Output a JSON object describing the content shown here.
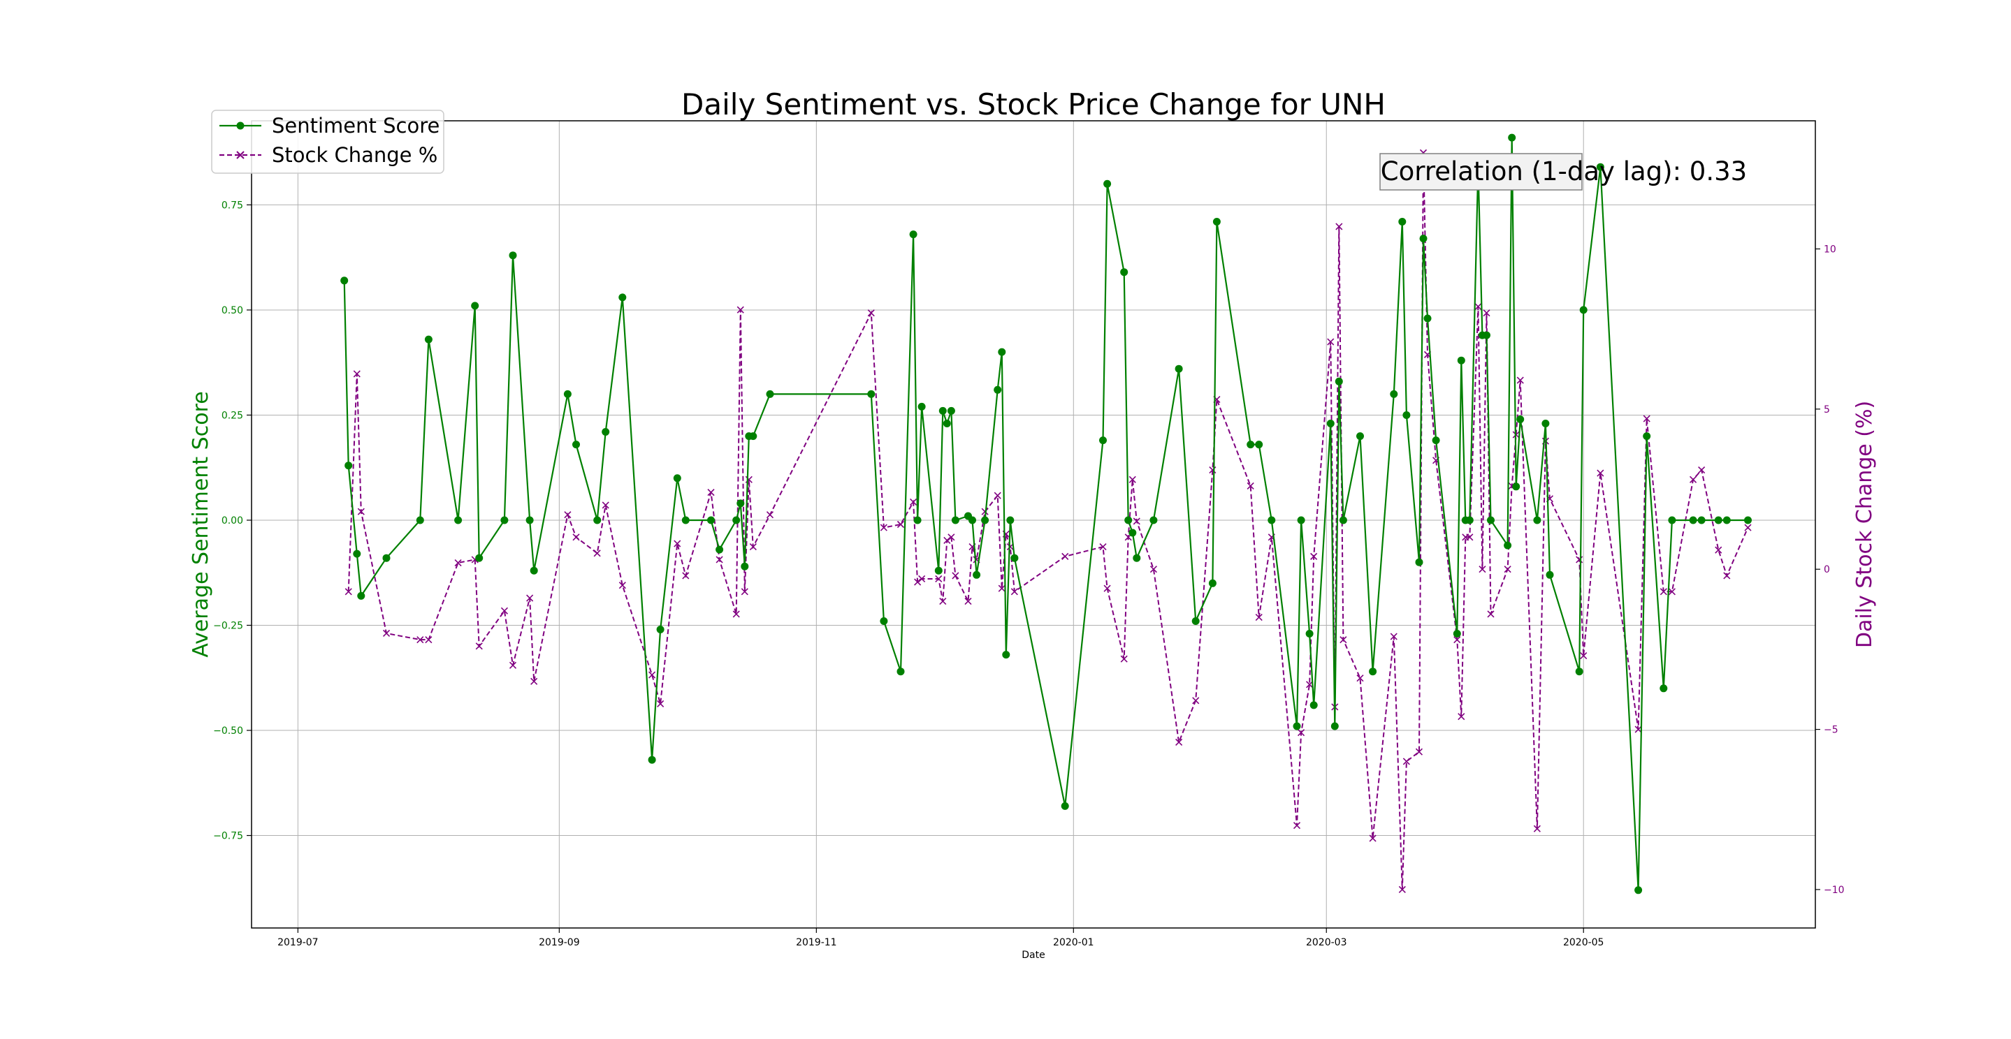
{
  "chart_data": {
    "type": "line",
    "title": "Daily Sentiment vs. Stock Price Change for UNH",
    "xlabel": "Date",
    "ylabel_left": "Average Sentiment Score",
    "ylabel_right": "Daily Stock Change (%)",
    "annotation": "Correlation (1-day lag): 0.33",
    "grid": true,
    "legend_position": "top-left",
    "x_ticks": [
      "2019-07",
      "2019-09",
      "2019-11",
      "2020-01",
      "2020-03",
      "2020-05"
    ],
    "x_range": [
      "2019-06-20",
      "2020-06-25"
    ],
    "y_left_range": [
      -0.97,
      0.95
    ],
    "y_left_ticks": [
      -0.75,
      -0.5,
      -0.25,
      0.0,
      0.25,
      0.5,
      0.75
    ],
    "y_left_tick_labels": [
      "−0.75",
      "−0.50",
      "−0.25",
      "0.00",
      "0.25",
      "0.50",
      "0.75"
    ],
    "y_right_range": [
      -11.2,
      14.0
    ],
    "y_right_ticks": [
      -10,
      -5,
      0,
      5,
      10
    ],
    "y_right_tick_labels": [
      "−10",
      "−5",
      "0",
      "5",
      "10"
    ],
    "colors": {
      "sentiment": "#008000",
      "stock": "#800080",
      "grid": "#b0b0b0"
    },
    "series": [
      {
        "name": "Sentiment Score",
        "axis": "left",
        "marker": "circle",
        "line_style": "solid",
        "points": [
          [
            "2019-07-12",
            0.57
          ],
          [
            "2019-07-13",
            0.13
          ],
          [
            "2019-07-15",
            -0.08
          ],
          [
            "2019-07-16",
            -0.18
          ],
          [
            "2019-07-22",
            -0.09
          ],
          [
            "2019-07-30",
            0.0
          ],
          [
            "2019-08-01",
            0.43
          ],
          [
            "2019-08-08",
            0.0
          ],
          [
            "2019-08-12",
            0.51
          ],
          [
            "2019-08-13",
            -0.09
          ],
          [
            "2019-08-19",
            0.0
          ],
          [
            "2019-08-21",
            0.63
          ],
          [
            "2019-08-25",
            0.0
          ],
          [
            "2019-08-26",
            -0.12
          ],
          [
            "2019-09-03",
            0.3
          ],
          [
            "2019-09-05",
            0.18
          ],
          [
            "2019-09-10",
            0.0
          ],
          [
            "2019-09-12",
            0.21
          ],
          [
            "2019-09-16",
            0.53
          ],
          [
            "2019-09-23",
            -0.57
          ],
          [
            "2019-09-25",
            -0.26
          ],
          [
            "2019-09-29",
            0.1
          ],
          [
            "2019-10-01",
            0.0
          ],
          [
            "2019-10-07",
            0.0
          ],
          [
            "2019-10-09",
            -0.07
          ],
          [
            "2019-10-13",
            0.0
          ],
          [
            "2019-10-14",
            0.04
          ],
          [
            "2019-10-15",
            -0.11
          ],
          [
            "2019-10-16",
            0.2
          ],
          [
            "2019-10-17",
            0.2
          ],
          [
            "2019-10-21",
            0.3
          ],
          [
            "2019-11-14",
            0.3
          ],
          [
            "2019-11-17",
            -0.24
          ],
          [
            "2019-11-21",
            -0.36
          ],
          [
            "2019-11-24",
            0.68
          ],
          [
            "2019-11-25",
            0.0
          ],
          [
            "2019-11-26",
            0.27
          ],
          [
            "2019-11-30",
            -0.12
          ],
          [
            "2019-12-01",
            0.26
          ],
          [
            "2019-12-02",
            0.23
          ],
          [
            "2019-12-03",
            0.26
          ],
          [
            "2019-12-04",
            0.0
          ],
          [
            "2019-12-07",
            0.01
          ],
          [
            "2019-12-08",
            0.0
          ],
          [
            "2019-12-09",
            -0.13
          ],
          [
            "2019-12-11",
            0.0
          ],
          [
            "2019-12-14",
            0.31
          ],
          [
            "2019-12-15",
            0.4
          ],
          [
            "2019-12-16",
            -0.32
          ],
          [
            "2019-12-17",
            0.0
          ],
          [
            "2019-12-18",
            -0.09
          ],
          [
            "2019-12-30",
            -0.68
          ],
          [
            "2020-01-08",
            0.19
          ],
          [
            "2020-01-09",
            0.8
          ],
          [
            "2020-01-13",
            0.59
          ],
          [
            "2020-01-14",
            0.0
          ],
          [
            "2020-01-15",
            -0.03
          ],
          [
            "2020-01-16",
            -0.09
          ],
          [
            "2020-01-20",
            0.0
          ],
          [
            "2020-01-26",
            0.36
          ],
          [
            "2020-01-30",
            -0.24
          ],
          [
            "2020-02-03",
            -0.15
          ],
          [
            "2020-02-04",
            0.71
          ],
          [
            "2020-02-12",
            0.18
          ],
          [
            "2020-02-14",
            0.18
          ],
          [
            "2020-02-17",
            0.0
          ],
          [
            "2020-02-23",
            -0.49
          ],
          [
            "2020-02-24",
            0.0
          ],
          [
            "2020-02-26",
            -0.27
          ],
          [
            "2020-02-27",
            -0.44
          ],
          [
            "2020-03-02",
            0.23
          ],
          [
            "2020-03-03",
            -0.49
          ],
          [
            "2020-03-04",
            0.33
          ],
          [
            "2020-03-05",
            0.0
          ],
          [
            "2020-03-09",
            0.2
          ],
          [
            "2020-03-12",
            -0.36
          ],
          [
            "2020-03-17",
            0.3
          ],
          [
            "2020-03-19",
            0.71
          ],
          [
            "2020-03-20",
            0.25
          ],
          [
            "2020-03-23",
            -0.1
          ],
          [
            "2020-03-24",
            0.67
          ],
          [
            "2020-03-25",
            0.48
          ],
          [
            "2020-03-27",
            0.19
          ],
          [
            "2020-04-01",
            -0.27
          ],
          [
            "2020-04-02",
            0.38
          ],
          [
            "2020-04-03",
            0.0
          ],
          [
            "2020-04-04",
            0.0
          ],
          [
            "2020-04-06",
            0.84
          ],
          [
            "2020-04-07",
            0.44
          ],
          [
            "2020-04-08",
            0.44
          ],
          [
            "2020-04-09",
            0.0
          ],
          [
            "2020-04-13",
            -0.06
          ],
          [
            "2020-04-14",
            0.91
          ],
          [
            "2020-04-15",
            0.08
          ],
          [
            "2020-04-16",
            0.24
          ],
          [
            "2020-04-20",
            0.0
          ],
          [
            "2020-04-22",
            0.23
          ],
          [
            "2020-04-23",
            -0.13
          ],
          [
            "2020-04-30",
            -0.36
          ],
          [
            "2020-05-01",
            0.5
          ],
          [
            "2020-05-05",
            0.84
          ],
          [
            "2020-05-14",
            -0.88
          ],
          [
            "2020-05-16",
            0.2
          ],
          [
            "2020-05-20",
            -0.4
          ],
          [
            "2020-05-22",
            0.0
          ],
          [
            "2020-05-27",
            0.0
          ],
          [
            "2020-05-29",
            0.0
          ],
          [
            "2020-06-02",
            0.0
          ],
          [
            "2020-06-04",
            0.0
          ],
          [
            "2020-06-09",
            0.0
          ]
        ]
      },
      {
        "name": "Stock Change %",
        "axis": "right",
        "marker": "x",
        "line_style": "dashed",
        "points": [
          [
            "2019-07-13",
            -0.7
          ],
          [
            "2019-07-15",
            6.1
          ],
          [
            "2019-07-16",
            1.8
          ],
          [
            "2019-07-22",
            -2.0
          ],
          [
            "2019-07-30",
            -2.2
          ],
          [
            "2019-08-01",
            -2.2
          ],
          [
            "2019-08-08",
            0.2
          ],
          [
            "2019-08-12",
            0.3
          ],
          [
            "2019-08-13",
            -2.4
          ],
          [
            "2019-08-19",
            -1.3
          ],
          [
            "2019-08-21",
            -3.0
          ],
          [
            "2019-08-25",
            -0.9
          ],
          [
            "2019-08-26",
            -3.5
          ],
          [
            "2019-09-03",
            1.7
          ],
          [
            "2019-09-05",
            1.0
          ],
          [
            "2019-09-10",
            0.5
          ],
          [
            "2019-09-12",
            2.0
          ],
          [
            "2019-09-16",
            -0.5
          ],
          [
            "2019-09-23",
            -3.3
          ],
          [
            "2019-09-25",
            -4.2
          ],
          [
            "2019-09-29",
            0.8
          ],
          [
            "2019-10-01",
            -0.2
          ],
          [
            "2019-10-07",
            2.4
          ],
          [
            "2019-10-09",
            0.3
          ],
          [
            "2019-10-13",
            -1.4
          ],
          [
            "2019-10-14",
            8.1
          ],
          [
            "2019-10-15",
            -0.7
          ],
          [
            "2019-10-16",
            2.8
          ],
          [
            "2019-10-17",
            0.7
          ],
          [
            "2019-10-21",
            1.7
          ],
          [
            "2019-11-14",
            8.0
          ],
          [
            "2019-11-17",
            1.3
          ],
          [
            "2019-11-21",
            1.4
          ],
          [
            "2019-11-24",
            2.1
          ],
          [
            "2019-11-25",
            -0.4
          ],
          [
            "2019-11-26",
            -0.3
          ],
          [
            "2019-11-30",
            -0.3
          ],
          [
            "2019-12-01",
            -1.0
          ],
          [
            "2019-12-02",
            0.9
          ],
          [
            "2019-12-03",
            1.0
          ],
          [
            "2019-12-04",
            -0.2
          ],
          [
            "2019-12-07",
            -1.0
          ],
          [
            "2019-12-08",
            0.7
          ],
          [
            "2019-12-09",
            0.3
          ],
          [
            "2019-12-11",
            1.8
          ],
          [
            "2019-12-14",
            2.3
          ],
          [
            "2019-12-15",
            -0.6
          ],
          [
            "2019-12-16",
            1.1
          ],
          [
            "2019-12-17",
            0.7
          ],
          [
            "2019-12-18",
            -0.7
          ],
          [
            "2019-12-30",
            0.4
          ],
          [
            "2020-01-08",
            0.7
          ],
          [
            "2020-01-09",
            -0.6
          ],
          [
            "2020-01-13",
            -2.8
          ],
          [
            "2020-01-14",
            1.0
          ],
          [
            "2020-01-15",
            2.8
          ],
          [
            "2020-01-16",
            1.5
          ],
          [
            "2020-01-20",
            0.0
          ],
          [
            "2020-01-26",
            -5.4
          ],
          [
            "2020-01-30",
            -4.1
          ],
          [
            "2020-02-03",
            3.1
          ],
          [
            "2020-02-04",
            5.3
          ],
          [
            "2020-02-12",
            2.6
          ],
          [
            "2020-02-14",
            -1.5
          ],
          [
            "2020-02-17",
            1.0
          ],
          [
            "2020-02-23",
            -8.0
          ],
          [
            "2020-02-24",
            -5.1
          ],
          [
            "2020-02-26",
            -3.6
          ],
          [
            "2020-02-27",
            0.4
          ],
          [
            "2020-03-02",
            7.1
          ],
          [
            "2020-03-03",
            -4.3
          ],
          [
            "2020-03-04",
            10.7
          ],
          [
            "2020-03-05",
            -2.2
          ],
          [
            "2020-03-09",
            -3.4
          ],
          [
            "2020-03-12",
            -8.4
          ],
          [
            "2020-03-17",
            -2.1
          ],
          [
            "2020-03-19",
            -10.0
          ],
          [
            "2020-03-20",
            -6.0
          ],
          [
            "2020-03-23",
            -5.7
          ],
          [
            "2020-03-24",
            13.0
          ],
          [
            "2020-03-25",
            6.7
          ],
          [
            "2020-03-27",
            3.4
          ],
          [
            "2020-04-01",
            -2.2
          ],
          [
            "2020-04-02",
            -4.6
          ],
          [
            "2020-04-03",
            1.0
          ],
          [
            "2020-04-04",
            1.0
          ],
          [
            "2020-04-06",
            8.2
          ],
          [
            "2020-04-07",
            0.0
          ],
          [
            "2020-04-08",
            8.0
          ],
          [
            "2020-04-09",
            -1.4
          ],
          [
            "2020-04-13",
            0.0
          ],
          [
            "2020-04-14",
            2.6
          ],
          [
            "2020-04-15",
            4.2
          ],
          [
            "2020-04-16",
            5.9
          ],
          [
            "2020-04-20",
            -8.1
          ],
          [
            "2020-04-22",
            4.0
          ],
          [
            "2020-04-23",
            2.2
          ],
          [
            "2020-04-30",
            0.3
          ],
          [
            "2020-05-01",
            -2.7
          ],
          [
            "2020-05-05",
            3.0
          ],
          [
            "2020-05-14",
            -5.0
          ],
          [
            "2020-05-16",
            4.7
          ],
          [
            "2020-05-20",
            -0.7
          ],
          [
            "2020-05-22",
            -0.7
          ],
          [
            "2020-05-27",
            2.8
          ],
          [
            "2020-05-29",
            3.1
          ],
          [
            "2020-06-02",
            0.6
          ],
          [
            "2020-06-04",
            -0.2
          ],
          [
            "2020-06-09",
            1.3
          ]
        ]
      }
    ]
  }
}
